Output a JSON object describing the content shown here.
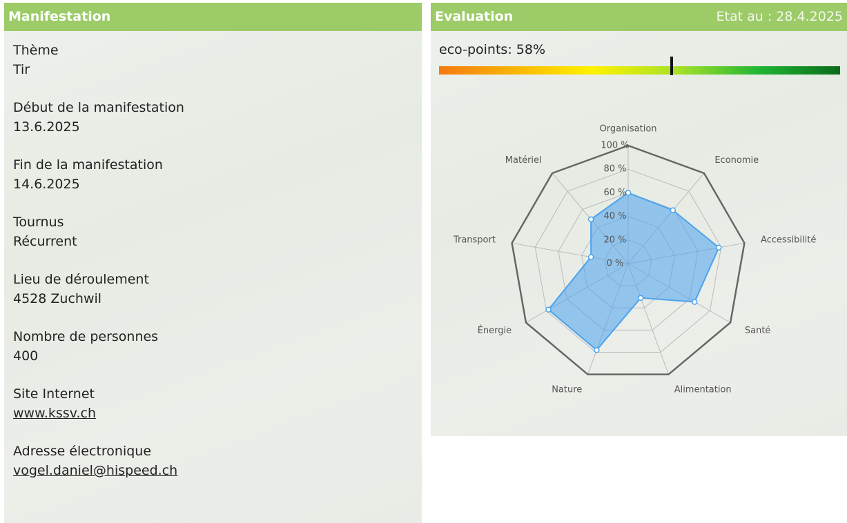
{
  "manifestation": {
    "title": "Manifestation",
    "fields": [
      {
        "label": "Thème",
        "value": "Tir"
      },
      {
        "label": "Début de la manifestation",
        "value": "13.6.2025"
      },
      {
        "label": "Fin de la manifestation",
        "value": "14.6.2025"
      },
      {
        "label": "Tournus",
        "value": "Récurrent"
      },
      {
        "label": "Lieu de déroulement",
        "value": "4528 Zuchwil"
      },
      {
        "label": "Nombre de personnes",
        "value": "400"
      },
      {
        "label": "Site Internet",
        "value": "www.kssv.ch",
        "link": true
      },
      {
        "label": "Adresse électronique",
        "value": "vogel.daniel@hispeed.ch",
        "link": true
      }
    ]
  },
  "evaluation": {
    "title": "Evaluation",
    "status": "Etat au : 28.4.2025",
    "eco_points": {
      "label": "eco-points: 58%",
      "value": 58,
      "lim": [
        0,
        100
      ]
    }
  },
  "chart_data": {
    "type": "radar",
    "categories": [
      "Organisation",
      "Economie",
      "Accessibilité",
      "Santé",
      "Alimentation",
      "Nature",
      "Énergie",
      "Transport",
      "Matériel"
    ],
    "series": [
      {
        "color": "#4aa3ee",
        "values": [
          60,
          59,
          78,
          65,
          31,
          78,
          78,
          32,
          49
        ]
      }
    ],
    "ylim": [
      0,
      100
    ],
    "yticks": [
      {
        "value": 0,
        "label": "0 %"
      },
      {
        "value": 20,
        "label": "20 %"
      },
      {
        "value": 40,
        "label": "40 %"
      },
      {
        "value": 60,
        "label": "60 %"
      },
      {
        "value": 80,
        "label": "80 %"
      },
      {
        "value": 100,
        "label": "100 %"
      }
    ],
    "grid": true
  }
}
